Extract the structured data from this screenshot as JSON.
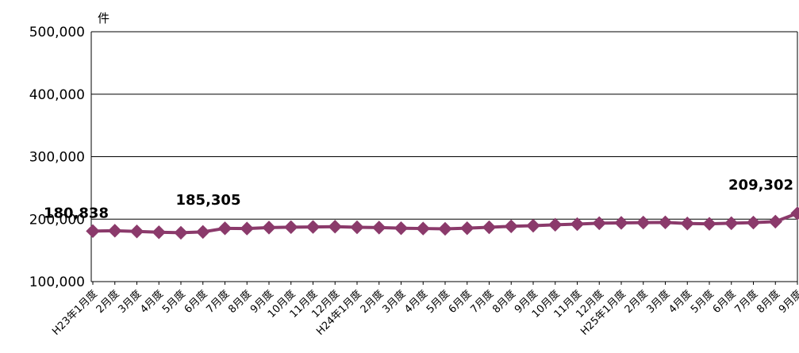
{
  "chart_data": {
    "type": "line",
    "title": "",
    "xlabel": "",
    "ylabel": "件",
    "ylim": [
      100000,
      500000
    ],
    "yticks": [
      100000,
      200000,
      300000,
      400000,
      500000
    ],
    "ytick_labels": [
      "100,000",
      "200,000",
      "300,000",
      "400,000",
      "500,000"
    ],
    "grid": true,
    "categories": [
      "H23年1月度",
      "2月度",
      "3月度",
      "4月度",
      "5月度",
      "6月度",
      "7月度",
      "8月度",
      "9月度",
      "10月度",
      "11月度",
      "12月度",
      "H24年1月度",
      "2月度",
      "3月度",
      "4月度",
      "5月度",
      "6月度",
      "7月度",
      "8月度",
      "9月度",
      "10月度",
      "11月度",
      "12月度",
      "H25年1月度",
      "2月度",
      "3月度",
      "4月度",
      "5月度",
      "6月度",
      "7月度",
      "8月度",
      "9月度"
    ],
    "series": [
      {
        "name": "",
        "color": "#8b3a6b",
        "values": [
          180838,
          181500,
          180300,
          179000,
          178200,
          179500,
          185305,
          185000,
          186500,
          187200,
          187500,
          188000,
          187000,
          186500,
          185500,
          185000,
          184500,
          185500,
          187000,
          188500,
          189500,
          191000,
          192000,
          193500,
          194000,
          194500,
          194800,
          193000,
          192500,
          193500,
          194500,
          196000,
          209302
        ]
      }
    ],
    "annotations": [
      {
        "index": 0,
        "text": "180,838"
      },
      {
        "index": 6,
        "text": "185,305"
      },
      {
        "index": 32,
        "text": "209,302"
      }
    ]
  }
}
